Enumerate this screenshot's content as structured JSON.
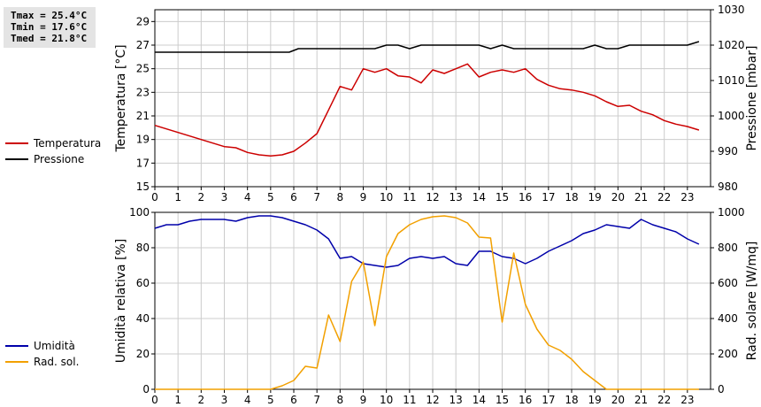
{
  "stats": {
    "tmax": "Tmax = 25.4°C",
    "tmin": "Tmin = 17.6°C",
    "tmed": "Tmed = 21.8°C"
  },
  "colors": {
    "temperatura": "#cc0000",
    "pressione": "#000000",
    "umidita": "#0000aa",
    "radiazione": "#f2a000",
    "grid": "#cccccc"
  },
  "chart_data": [
    {
      "type": "line",
      "x_ticks": [
        0,
        1,
        2,
        3,
        4,
        5,
        6,
        7,
        8,
        9,
        10,
        11,
        12,
        13,
        14,
        15,
        16,
        17,
        18,
        19,
        20,
        21,
        22,
        23
      ],
      "xlim": [
        0,
        24
      ],
      "ylabel": "Temperatura [°C]",
      "ylabel_right": "Pressione [mbar]",
      "ylim": [
        15,
        30
      ],
      "y_ticks": [
        15,
        17,
        19,
        21,
        23,
        25,
        27,
        29
      ],
      "ylim_right": [
        980,
        1030
      ],
      "y_ticks_right": [
        980,
        990,
        1000,
        1010,
        1020,
        1030
      ],
      "grid": true,
      "legend_position": "left",
      "series": [
        {
          "name": "Temperatura",
          "axis": "left",
          "x": [
            0,
            0.5,
            1,
            1.5,
            2,
            2.5,
            3,
            3.5,
            4,
            4.5,
            5,
            5.5,
            6,
            6.5,
            7,
            7.5,
            8,
            8.5,
            9,
            9.5,
            10,
            10.5,
            11,
            11.5,
            12,
            12.5,
            13,
            13.5,
            14,
            14.5,
            15,
            15.5,
            16,
            16.5,
            17,
            17.5,
            18,
            18.5,
            19,
            19.5,
            20,
            20.5,
            21,
            21.5,
            22,
            22.5,
            23,
            23.5
          ],
          "values": [
            20.2,
            19.9,
            19.6,
            19.3,
            19.0,
            18.7,
            18.4,
            18.3,
            17.9,
            17.7,
            17.6,
            17.7,
            18.0,
            18.7,
            19.5,
            21.5,
            23.5,
            23.2,
            25.0,
            24.7,
            25.0,
            24.4,
            24.3,
            23.8,
            24.9,
            24.6,
            25.0,
            25.4,
            24.3,
            24.7,
            24.9,
            24.7,
            25.0,
            24.1,
            23.6,
            23.3,
            23.2,
            23.0,
            22.7,
            22.2,
            21.8,
            21.9,
            21.4,
            21.1,
            20.6,
            20.3,
            20.1,
            19.8
          ]
        },
        {
          "name": "Pressione",
          "axis": "right",
          "x": [
            0,
            0.5,
            1,
            1.5,
            2,
            2.5,
            3,
            3.5,
            4,
            4.5,
            5,
            5.5,
            5.8,
            6.2,
            6.5,
            7,
            7.5,
            8,
            8.5,
            9,
            9.5,
            10,
            10.5,
            11,
            11.5,
            12,
            12.5,
            13,
            13.5,
            14,
            14.5,
            15,
            15.5,
            16,
            16.5,
            17,
            17.5,
            18,
            18.5,
            19,
            19.5,
            20,
            20.5,
            21,
            21.5,
            22,
            22.5,
            23,
            23.5
          ],
          "values": [
            1018,
            1018,
            1018,
            1018,
            1018,
            1018,
            1018,
            1018,
            1018,
            1018,
            1018,
            1018,
            1018,
            1019,
            1019,
            1019,
            1019,
            1019,
            1019,
            1019,
            1019,
            1020,
            1020,
            1019,
            1020,
            1020,
            1020,
            1020,
            1020,
            1020,
            1019,
            1020,
            1019,
            1019,
            1019,
            1019,
            1019,
            1019,
            1019,
            1020,
            1019,
            1019,
            1020,
            1020,
            1020,
            1020,
            1020,
            1020,
            1021
          ]
        }
      ]
    },
    {
      "type": "line",
      "x_ticks": [
        0,
        1,
        2,
        3,
        4,
        5,
        6,
        7,
        8,
        9,
        10,
        11,
        12,
        13,
        14,
        15,
        16,
        17,
        18,
        19,
        20,
        21,
        22,
        23
      ],
      "xlim": [
        0,
        24
      ],
      "ylabel": "Umidità relativa [%]",
      "ylabel_right": "Rad. solare [W/mq]",
      "ylim": [
        0,
        100
      ],
      "y_ticks": [
        0,
        20,
        40,
        60,
        80,
        100
      ],
      "ylim_right": [
        0,
        1000
      ],
      "y_ticks_right": [
        0,
        200,
        400,
        600,
        800,
        1000
      ],
      "grid": true,
      "legend_position": "left",
      "series": [
        {
          "name": "Umidità",
          "axis": "left",
          "x": [
            0,
            0.5,
            1,
            1.5,
            2,
            2.5,
            3,
            3.5,
            4,
            4.5,
            5,
            5.5,
            6,
            6.5,
            7,
            7.5,
            8,
            8.5,
            9,
            9.5,
            10,
            10.5,
            11,
            11.5,
            12,
            12.5,
            13,
            13.5,
            14,
            14.5,
            15,
            15.5,
            16,
            16.5,
            17,
            17.5,
            18,
            18.5,
            19,
            19.5,
            20,
            20.5,
            21,
            21.5,
            22,
            22.5,
            23,
            23.5
          ],
          "values": [
            91,
            93,
            93,
            95,
            96,
            96,
            96,
            95,
            97,
            98,
            98,
            97,
            95,
            93,
            90,
            85,
            74,
            75,
            71,
            70,
            69,
            70,
            74,
            75,
            74,
            75,
            71,
            70,
            78,
            78,
            75,
            74,
            71,
            74,
            78,
            81,
            84,
            88,
            90,
            93,
            92,
            91,
            96,
            93,
            91,
            89,
            85,
            82
          ]
        },
        {
          "name": "Rad. sol.",
          "axis": "right",
          "x": [
            0,
            0.5,
            1,
            1.5,
            2,
            2.5,
            3,
            3.5,
            4,
            4.5,
            5,
            5.5,
            6,
            6.5,
            7,
            7.5,
            8,
            8.5,
            9,
            9.5,
            10,
            10.5,
            11,
            11.5,
            12,
            12.5,
            13,
            13.5,
            14,
            14.5,
            15,
            15.5,
            16,
            16.5,
            17,
            17.5,
            18,
            18.5,
            19,
            19.5,
            20,
            20.5,
            21,
            21.5,
            22,
            22.5,
            23,
            23.5
          ],
          "values": [
            0,
            0,
            0,
            0,
            0,
            0,
            0,
            0,
            0,
            0,
            0,
            20,
            50,
            130,
            120,
            420,
            270,
            610,
            720,
            360,
            750,
            880,
            930,
            960,
            975,
            980,
            970,
            940,
            860,
            855,
            380,
            770,
            480,
            340,
            250,
            220,
            170,
            100,
            50,
            0,
            0,
            0,
            0,
            0,
            0,
            0,
            0,
            0
          ]
        }
      ]
    }
  ]
}
